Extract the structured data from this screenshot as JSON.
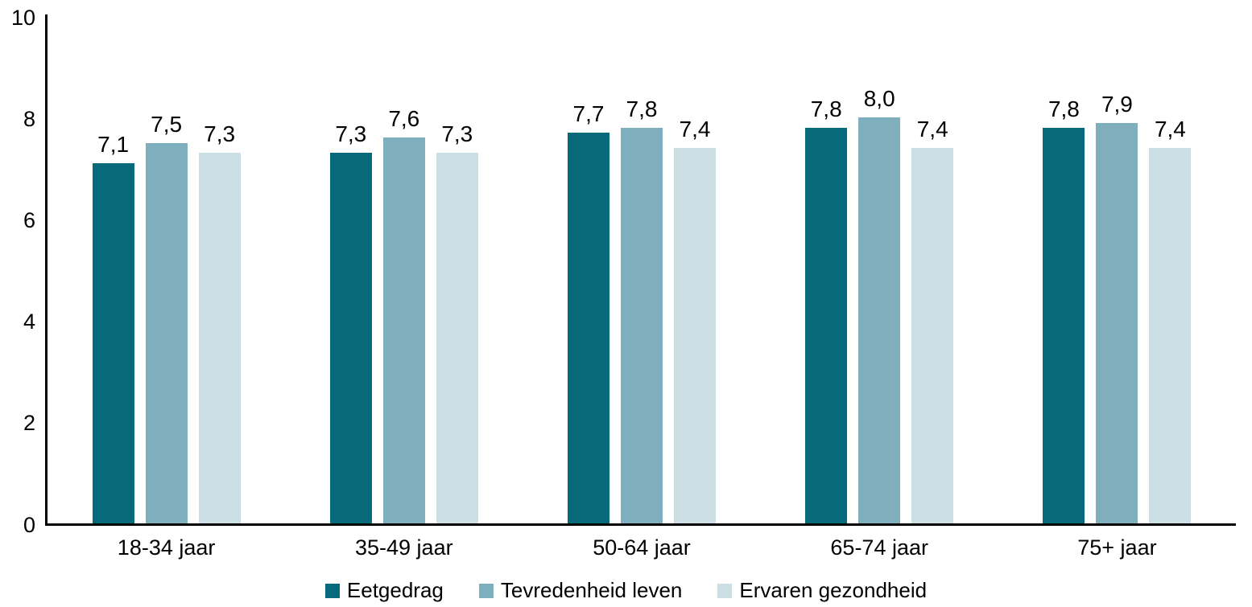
{
  "chart_data": {
    "type": "bar",
    "title": "",
    "xlabel": "",
    "ylabel": "",
    "categories": [
      "18-34 jaar",
      "35-49 jaar",
      "50-64 jaar",
      "65-74 jaar",
      "75+ jaar"
    ],
    "series": [
      {
        "name": "Eetgedrag",
        "color": "#066a7b",
        "values": [
          7.1,
          7.3,
          7.7,
          7.8,
          7.8
        ],
        "labels": [
          "7,1",
          "7,3",
          "7,7",
          "7,8",
          "7,8"
        ]
      },
      {
        "name": "Tevredenheid leven",
        "color": "#7fafbc",
        "values": [
          7.5,
          7.6,
          7.8,
          8.0,
          7.9
        ],
        "labels": [
          "7,5",
          "7,6",
          "7,8",
          "8,0",
          "7,9"
        ]
      },
      {
        "name": "Ervaren gezondheid",
        "color": "#ccdfe5",
        "values": [
          7.3,
          7.3,
          7.4,
          7.4,
          7.4
        ],
        "labels": [
          "7,3",
          "7,3",
          "7,4",
          "7,4",
          "7,4"
        ]
      }
    ],
    "ylim": [
      0,
      10
    ],
    "yticks": [
      0,
      2,
      4,
      6,
      8,
      10
    ],
    "grid": false,
    "legend_position": "bottom",
    "decimal_separator": ",",
    "axis_color": "#000000",
    "text_color": "#000000",
    "background_color": "#ffffff"
  }
}
